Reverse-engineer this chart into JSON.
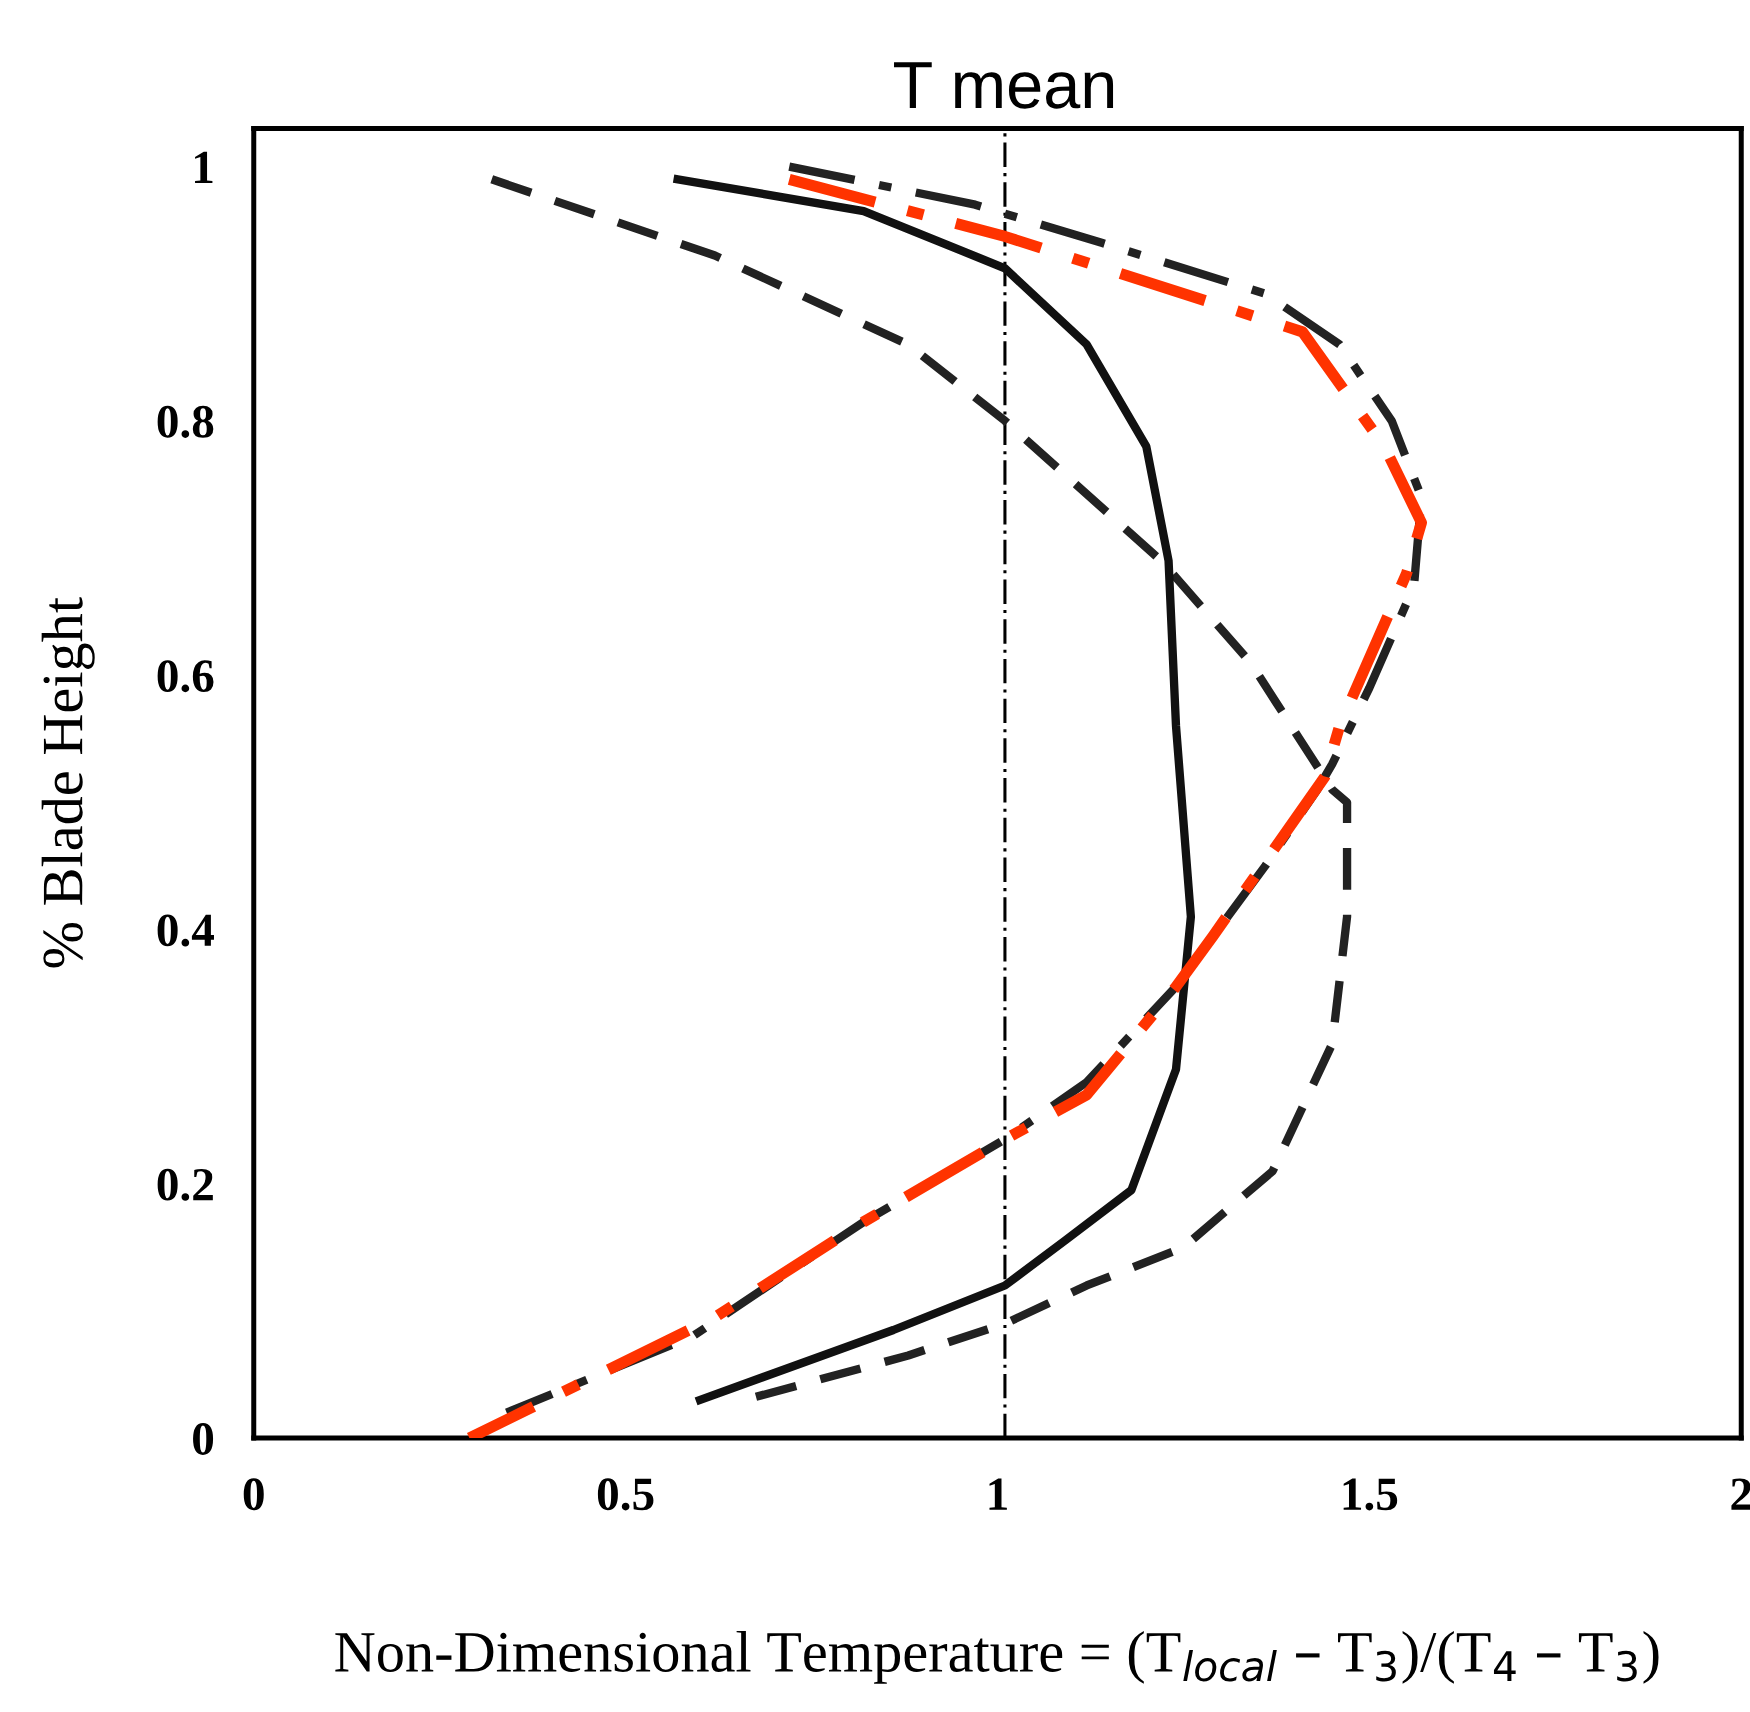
{
  "chart_data": {
    "type": "line",
    "xlabel": "Non-Dimensional Temperature = (T$_{local}$ – T$_{3}$)/(T$_{4}$ – T$_{3}$)",
    "ylabel": "% Blade Height",
    "xlim": [
      0,
      2
    ],
    "ylim": [
      0,
      1.03
    ],
    "xticks": [
      0,
      0.5,
      1,
      1.5,
      2
    ],
    "yticks": [
      0,
      0.2,
      0.4,
      0.6,
      0.8,
      1
    ],
    "grid": false,
    "legend": false,
    "ref_lines": [
      {
        "axis": "x",
        "value": 1.01,
        "label": "T mean",
        "color": "#000000",
        "line_style": "dashdot"
      }
    ],
    "series": [
      {
        "color": "#222222",
        "line_style": "dashed",
        "x": [
          0.32,
          0.62,
          0.88,
          1.01,
          1.22,
          1.34,
          1.45,
          1.47,
          1.47,
          1.45,
          1.37,
          1.25,
          1.12,
          1.01,
          0.88,
          0.66
        ],
        "values": [
          0.99,
          0.93,
          0.86,
          0.8,
          0.69,
          0.61,
          0.51,
          0.5,
          0.41,
          0.31,
          0.21,
          0.15,
          0.12,
          0.09,
          0.065,
          0.03
        ]
      },
      {
        "color": "#111111",
        "line_style": "solid",
        "x": [
          0.57,
          0.82,
          1.01,
          1.12,
          1.2,
          1.23,
          1.24,
          1.26,
          1.24,
          1.18,
          1.09,
          1.01,
          0.86,
          0.6
        ],
        "values": [
          0.99,
          0.965,
          0.92,
          0.86,
          0.78,
          0.69,
          0.56,
          0.41,
          0.29,
          0.195,
          0.155,
          0.12,
          0.085,
          0.03
        ]
      },
      {
        "color": "#222222",
        "line_style": "dashdot",
        "x": [
          0.72,
          0.97,
          1.14,
          1.36,
          1.46,
          1.53,
          1.57,
          1.56,
          1.5,
          1.45,
          1.43,
          1.36,
          1.24,
          1.12,
          1.01,
          0.82,
          0.59,
          0.34
        ],
        "values": [
          1.0,
          0.97,
          0.94,
          0.9,
          0.86,
          0.8,
          0.74,
          0.67,
          0.59,
          0.53,
          0.51,
          0.45,
          0.355,
          0.28,
          0.235,
          0.17,
          0.08,
          0.02
        ]
      },
      {
        "color": "#ff3300",
        "line_style": "dashdot",
        "x": [
          0.72,
          1.01,
          1.41,
          1.52,
          1.57,
          1.55,
          1.46,
          1.44,
          1.29,
          1.24,
          1.12,
          1.01,
          0.82,
          0.62,
          0.29
        ],
        "values": [
          0.99,
          0.945,
          0.87,
          0.78,
          0.72,
          0.68,
          0.56,
          0.52,
          0.395,
          0.355,
          0.27,
          0.235,
          0.17,
          0.095,
          0.0
        ]
      }
    ]
  }
}
